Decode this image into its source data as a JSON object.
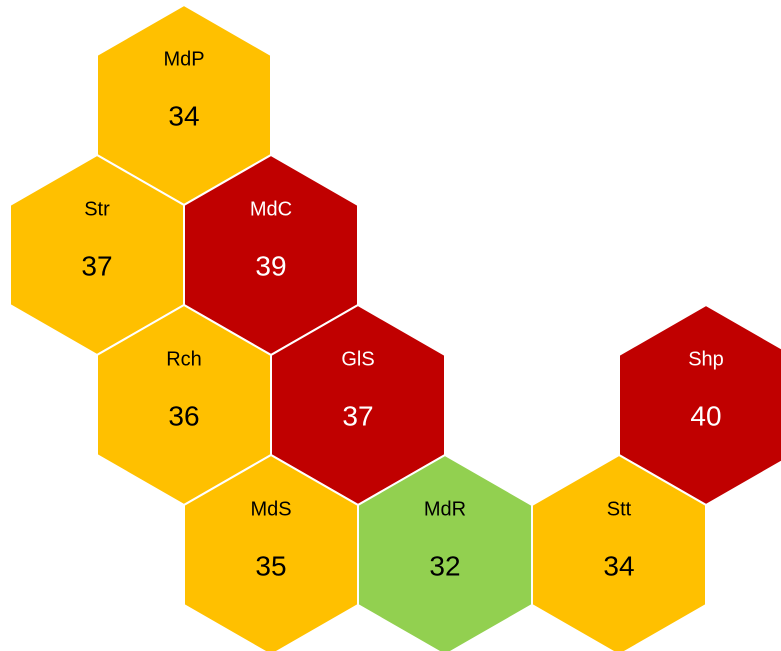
{
  "tiles": [
    {
      "label": "MdP",
      "value": "34",
      "color": "#FFC000"
    },
    {
      "label": "Str",
      "value": "37",
      "color": "#FFC000"
    },
    {
      "label": "MdC",
      "value": "39",
      "color": "#C00000"
    },
    {
      "label": "Rch",
      "value": "36",
      "color": "#FFC000"
    },
    {
      "label": "GlS",
      "value": "37",
      "color": "#C00000"
    },
    {
      "label": "Shp",
      "value": "40",
      "color": "#C00000"
    },
    {
      "label": "MdS",
      "value": "35",
      "color": "#FFC000"
    },
    {
      "label": "MdR",
      "value": "32",
      "color": "#92D050"
    },
    {
      "label": "Stt",
      "value": "34",
      "color": "#FFC000"
    }
  ]
}
